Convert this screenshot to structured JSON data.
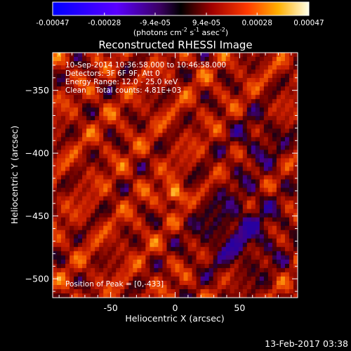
{
  "chart_data": {
    "type": "heatmap",
    "title": "Reconstructed RHESSI Image",
    "xlabel": "Heliocentric X (arcsec)",
    "ylabel": "Heliocentric Y (arcsec)",
    "xlim": [
      -95,
      95
    ],
    "ylim": [
      -515,
      -320
    ],
    "xticks": [
      -50,
      0,
      50
    ],
    "yticks": [
      -350,
      -400,
      -450,
      -500
    ],
    "colorbar": {
      "min": -0.00047,
      "max": 0.00047,
      "ticks": [
        "-0.00047",
        "-0.00028",
        "-9.4e-05",
        "9.4e-05",
        "0.00028",
        "0.00047"
      ],
      "tick_values": [
        -0.00047,
        -0.00028,
        -9.4e-05,
        9.4e-05,
        0.00028,
        0.00047
      ],
      "units_prefix": "(photons cm",
      "units_exp1": "-2",
      "units_mid": " s",
      "units_exp2": "-1",
      "units_mid2": " asec",
      "units_exp3": "-2",
      "units_suffix": ")"
    },
    "annotations": [
      "10-Sep-2014 10:36:58.000 to 10:46:58.000",
      "Detectors: 3F 6F 9F, Att 0",
      "Energy Range: 12.0 - 25.0 keV",
      "Clean    Total counts: 4.81E+03"
    ],
    "peak_label": "Position of Peak = [0,-433]",
    "peak": [
      0,
      -433
    ],
    "timestamp": "13-Feb-2017 03:38"
  },
  "colors": {
    "background": "#000000",
    "foreground": "#ffffff"
  }
}
